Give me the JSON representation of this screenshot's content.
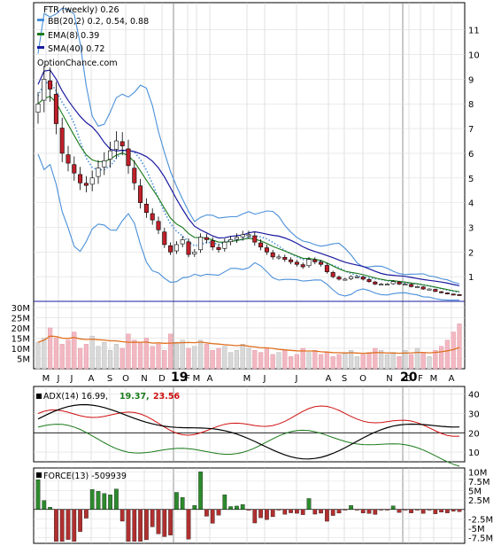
{
  "chart_data": [
    {
      "type": "candlestick",
      "title": "FTR (weekly) 0.26",
      "watermark": "OptionChance.com",
      "legend": [
        {
          "label": "BB(20,2) 0.2, 0.54, 0.88",
          "color": "#4a90d9"
        },
        {
          "label": "EMA(8) 0.39",
          "color": "#1a7a1a"
        },
        {
          "label": "SMA(40) 0.72",
          "color": "#1a1aa0"
        }
      ],
      "legend_position": "top-left",
      "y_ticks": [
        "1",
        "2",
        "3",
        "4",
        "5",
        "6",
        "7",
        "8",
        "9",
        "10",
        "11"
      ],
      "ylim": [
        0,
        11.8
      ],
      "grid": true,
      "x_month_labels": [
        "M",
        "J",
        "J",
        "A",
        "S",
        "O",
        "N",
        "D",
        "F",
        "M",
        "A",
        "M",
        "J",
        "J",
        "A",
        "S",
        "O",
        "N",
        "D",
        "F",
        "M",
        "A"
      ],
      "x_year_labels": [
        "19",
        "20"
      ],
      "close_approx": [
        8.0,
        9.0,
        8.6,
        7.2,
        6.0,
        5.6,
        5.2,
        4.8,
        4.7,
        5.0,
        5.4,
        5.7,
        6.1,
        6.5,
        6.3,
        5.5,
        4.8,
        4.0,
        3.6,
        3.3,
        2.9,
        2.3,
        2.0,
        2.3,
        2.5,
        1.9,
        2.0,
        2.6,
        2.5,
        2.2,
        2.1,
        2.4,
        2.5,
        2.6,
        2.7,
        2.7,
        2.4,
        2.2,
        2.0,
        1.8,
        1.8,
        1.7,
        1.6,
        1.5,
        1.4,
        1.7,
        1.6,
        1.5,
        1.2,
        1.0,
        0.9,
        0.9,
        1.0,
        1.0,
        0.9,
        0.8,
        0.7,
        0.7,
        0.7,
        0.8,
        0.7,
        0.7,
        0.6,
        0.6,
        0.5,
        0.5,
        0.4,
        0.35,
        0.3,
        0.28,
        0.26
      ]
    },
    {
      "type": "bar",
      "title": "Volume",
      "y_ticks": [
        "5M",
        "10M",
        "15M",
        "20M",
        "25M",
        "30M"
      ],
      "ylim": [
        0,
        33
      ],
      "unit": "M shares",
      "values_approx": [
        13,
        15,
        20,
        15,
        12,
        14,
        18,
        10,
        12,
        16,
        11,
        13,
        9,
        12,
        10,
        17,
        14,
        13,
        15,
        11,
        12,
        9,
        17,
        13,
        14,
        10,
        11,
        14,
        12,
        9,
        10,
        11,
        8,
        9,
        12,
        10,
        9,
        8,
        10,
        7,
        8,
        9,
        6,
        7,
        10,
        8,
        9,
        7,
        8,
        6,
        7,
        8,
        9,
        6,
        7,
        8,
        10,
        9,
        7,
        8,
        6,
        9,
        7,
        10,
        8,
        6,
        9,
        11,
        14,
        18,
        22
      ]
    },
    {
      "type": "line",
      "title": "ADX(14) 16.99,",
      "series": [
        {
          "name": "19.37,",
          "color": "#1a7a1a"
        },
        {
          "name": "23.56",
          "color": "#d01010"
        }
      ],
      "y_ticks": [
        "10",
        "20",
        "30",
        "40"
      ],
      "ylim": [
        5,
        44
      ]
    },
    {
      "type": "bar",
      "title": "FORCE(13) -509939",
      "y_ticks": [
        "10M",
        "7.5M",
        "5M",
        "2.5M",
        "-2.5M",
        "-5M",
        "-7.5M"
      ],
      "ylim": [
        -9,
        11
      ]
    }
  ],
  "header": {
    "title": "FTR (weekly) 0.26",
    "watermark": "OptionChance.com"
  },
  "colors": {
    "up_candle": "#2d8a2d",
    "down_candle": "#c0202a",
    "bollinger": "#4a90d9",
    "ema": "#1a7a1a",
    "sma": "#1a1aa0",
    "volume_up": "#d8d8d8",
    "volume_down": "#f2b8c2",
    "volume_avg": "#e07020",
    "force": "#b03030"
  },
  "adx_panel": {
    "label": "ADX(14) 16.99,",
    "plus_di": "19.37,",
    "minus_di": "23.56"
  },
  "force_panel": {
    "label": "FORCE(13) -509939"
  }
}
